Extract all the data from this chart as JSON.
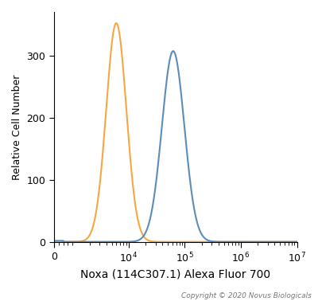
{
  "xlabel": "Noxa (114C307.1) Alexa Fluor 700",
  "ylabel": "Relative Cell Number",
  "copyright": "Copyright © 2020 Novus Biologicals",
  "ylim": [
    0,
    370
  ],
  "yticks": [
    0,
    100,
    200,
    300
  ],
  "orange_peak": 6000,
  "orange_peak_height": 352,
  "orange_sigma": 0.18,
  "blue_peak": 62000,
  "blue_peak_height": 307,
  "blue_sigma": 0.2,
  "orange_color": "#F5A742",
  "blue_color": "#5B8DB8",
  "background_color": "#FFFFFF",
  "linewidth": 1.5,
  "xmin": 0,
  "xmax": 10000000.0,
  "linear_threshold": 1000,
  "copyright_color": "#777777"
}
